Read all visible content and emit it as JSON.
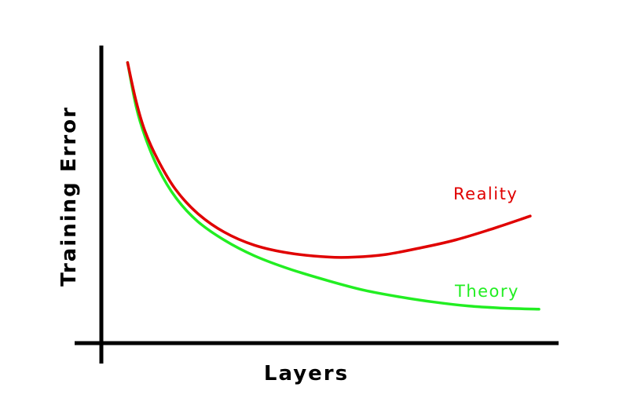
{
  "chart_data": {
    "type": "line",
    "title": "",
    "xlabel": "Layers",
    "ylabel": "Training Error",
    "grid": false,
    "legend": "inline labels at right end of each curve",
    "xlim": [
      0,
      1
    ],
    "ylim": [
      0,
      1
    ],
    "series": [
      {
        "name": "Reality",
        "color": "#e00000",
        "x": [
          0.06,
          0.08,
          0.1,
          0.13,
          0.17,
          0.22,
          0.28,
          0.35,
          0.43,
          0.52,
          0.58,
          0.65,
          0.73,
          0.81,
          0.89,
          0.98
        ],
        "y": [
          0.98,
          0.83,
          0.72,
          0.61,
          0.5,
          0.41,
          0.34,
          0.29,
          0.26,
          0.245,
          0.245,
          0.255,
          0.28,
          0.31,
          0.35,
          0.4
        ]
      },
      {
        "name": "Theory",
        "color": "#22ee22",
        "x": [
          0.06,
          0.08,
          0.1,
          0.13,
          0.17,
          0.22,
          0.28,
          0.35,
          0.43,
          0.52,
          0.6,
          0.68,
          0.76,
          0.84,
          0.92,
          1.0
        ],
        "y": [
          0.98,
          0.81,
          0.7,
          0.58,
          0.47,
          0.38,
          0.31,
          0.25,
          0.2,
          0.155,
          0.12,
          0.095,
          0.075,
          0.06,
          0.052,
          0.048
        ]
      }
    ]
  }
}
